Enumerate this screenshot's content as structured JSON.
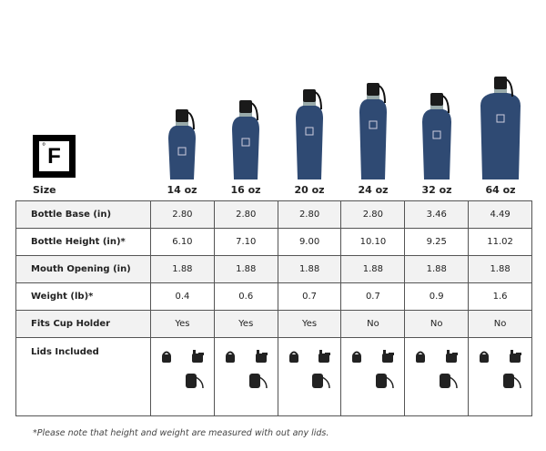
{
  "brand": {
    "logo_text": "F"
  },
  "header": {
    "size_label": "Size",
    "sizes": [
      "14 oz",
      "16 oz",
      "20 oz",
      "24 oz",
      "32 oz",
      "64 oz"
    ]
  },
  "colors": {
    "bottle": "#2f4a73",
    "row_alt": "#f2f2f2"
  },
  "rows": [
    {
      "label": "Bottle Base (in)",
      "values": [
        "2.80",
        "2.80",
        "2.80",
        "2.80",
        "3.46",
        "4.49"
      ]
    },
    {
      "label": "Bottle Height (in)*",
      "values": [
        "6.10",
        "7.10",
        "9.00",
        "10.10",
        "9.25",
        "11.02"
      ]
    },
    {
      "label": "Mouth Opening (in)",
      "values": [
        "1.88",
        "1.88",
        "1.88",
        "1.88",
        "1.88",
        "1.88"
      ]
    },
    {
      "label": "Weight (lb)*",
      "values": [
        "0.4",
        "0.6",
        "0.7",
        "0.7",
        "0.9",
        "1.6"
      ]
    },
    {
      "label": "Fits Cup Holder",
      "values": [
        "Yes",
        "Yes",
        "Yes",
        "No",
        "No",
        "No"
      ]
    }
  ],
  "lids": {
    "label": "Lids Included",
    "icons": [
      "loop-lid-icon",
      "spout-lid-icon",
      "chug-lid-icon"
    ]
  },
  "footnote": "*Please note that height and weight are measured with out any lids."
}
